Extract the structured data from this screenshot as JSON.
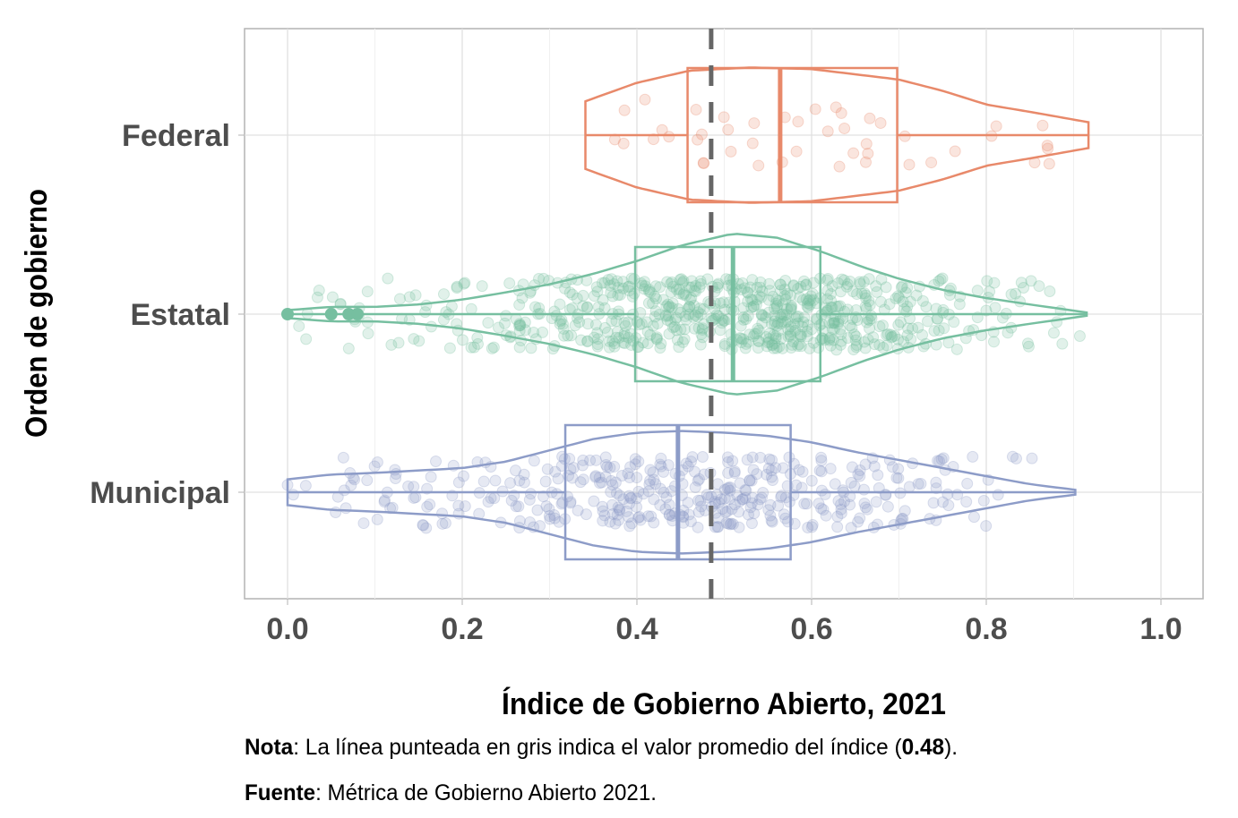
{
  "chart_data": {
    "type": "violin-box-jitter",
    "xlabel": "Índice de Gobierno Abierto, 2021",
    "ylabel": "Orden de gobierno",
    "xlim": [
      0,
      1
    ],
    "x_ticks": [
      "0.0",
      "0.2",
      "0.4",
      "0.6",
      "0.8",
      "1.0"
    ],
    "grid": true,
    "mean_line": {
      "value": 0.485,
      "color": "#666666",
      "style": "dashed"
    },
    "series": [
      {
        "name": "Federal",
        "color": "#E8896A",
        "box": {
          "min": 0.341,
          "q1": 0.458,
          "median": 0.564,
          "q3": 0.698,
          "max": 0.917
        },
        "outliers": [],
        "density": {
          "x": [
            0.341,
            0.4,
            0.46,
            0.53,
            0.6,
            0.7,
            0.75,
            0.8,
            0.86,
            0.917
          ],
          "y": [
            0.42,
            0.65,
            0.8,
            0.84,
            0.82,
            0.69,
            0.55,
            0.38,
            0.27,
            0.16
          ]
        }
      },
      {
        "name": "Estatal",
        "color": "#76BFA0",
        "box": {
          "min": 0.0,
          "q1": 0.398,
          "median": 0.51,
          "q3": 0.61,
          "max": 0.915
        },
        "outliers": [
          0.0,
          0.05,
          0.07,
          0.08
        ],
        "density": {
          "x": [
            0.0,
            0.05,
            0.1,
            0.15,
            0.2,
            0.25,
            0.3,
            0.35,
            0.4,
            0.45,
            0.51,
            0.56,
            0.61,
            0.66,
            0.7,
            0.75,
            0.8,
            0.85,
            0.915
          ],
          "y": [
            0.05,
            0.09,
            0.09,
            0.12,
            0.18,
            0.27,
            0.37,
            0.5,
            0.66,
            0.85,
            1.0,
            0.95,
            0.78,
            0.58,
            0.44,
            0.3,
            0.2,
            0.12,
            0.02
          ]
        }
      },
      {
        "name": "Municipal",
        "color": "#8D9CC8",
        "box": {
          "min": 0.0,
          "q1": 0.318,
          "median": 0.447,
          "q3": 0.576,
          "max": 0.902
        },
        "outliers": [],
        "density": {
          "x": [
            0.0,
            0.05,
            0.1,
            0.15,
            0.2,
            0.25,
            0.3,
            0.35,
            0.4,
            0.45,
            0.5,
            0.55,
            0.6,
            0.65,
            0.7,
            0.75,
            0.8,
            0.85,
            0.902
          ],
          "y": [
            0.16,
            0.22,
            0.24,
            0.27,
            0.3,
            0.38,
            0.52,
            0.66,
            0.74,
            0.76,
            0.74,
            0.7,
            0.62,
            0.5,
            0.4,
            0.3,
            0.2,
            0.1,
            0.03
          ]
        }
      }
    ]
  },
  "caption": {
    "nota_label": "Nota",
    "nota_text_1": ": La línea punteada en gris indica el valor promedio del índice (",
    "nota_value": "0.48",
    "nota_text_2": ").",
    "fuente_label": "Fuente",
    "fuente_text": ": Métrica de Gobierno Abierto 2021."
  }
}
